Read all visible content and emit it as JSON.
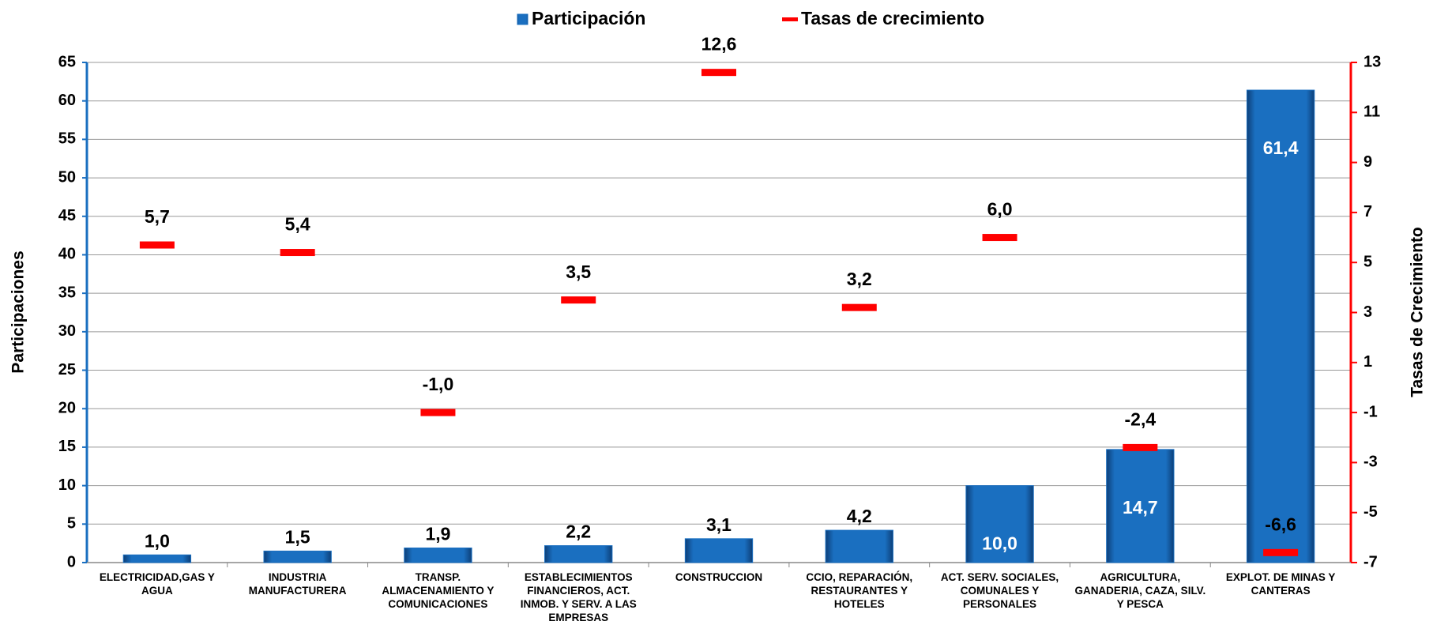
{
  "chart_data": {
    "type": "bar",
    "ylabel": "Participaciones",
    "y2label": "Tasas de Crecimiento",
    "categories": [
      "ELECTRICIDAD,GAS Y AGUA",
      "INDUSTRIA MANUFACTURERA",
      "TRANSP. ALMACENAMIENTO Y COMUNICACIONES",
      "ESTABLECIMIENTOS FINANCIEROS, ACT. INMOB. Y SERV. A LAS EMPRESAS",
      "CONSTRUCCION",
      "CCIO, REPARACIÓN, RESTAURANTES Y HOTELES",
      "ACT. SERV. SOCIALES, COMUNALES Y PERSONALES",
      "AGRICULTURA, GANADERIA, CAZA, SILV. Y PESCA",
      "EXPLOT. DE MINAS Y CANTERAS"
    ],
    "series": [
      {
        "name": "Participación",
        "type": "bar",
        "color": "#1a6fc0",
        "values": [
          1.0,
          1.5,
          1.9,
          2.2,
          3.1,
          4.2,
          10.0,
          14.7,
          61.4
        ],
        "value_labels": [
          "1,0",
          "1,5",
          "1,9",
          "2,2",
          "3,1",
          "4,2",
          "10,0",
          "14,7",
          "61,4"
        ]
      },
      {
        "name": "Tasas de crecimiento",
        "type": "marker",
        "axis": "y2",
        "color": "#ff0000",
        "values": [
          5.7,
          5.4,
          -1.0,
          3.5,
          12.6,
          3.2,
          6.0,
          -2.4,
          -6.6
        ],
        "value_labels": [
          "5,7",
          "5,4",
          "-1,0",
          "3,5",
          "12,6",
          "3,2",
          "6,0",
          "-2,4",
          "-6,6"
        ]
      }
    ],
    "ylim": [
      0,
      65
    ],
    "yticks": [
      0,
      5,
      10,
      15,
      20,
      25,
      30,
      35,
      40,
      45,
      50,
      55,
      60,
      65
    ],
    "y2lim": [
      -7,
      13
    ],
    "y2ticks": [
      -7,
      -5,
      -3,
      -1,
      1,
      3,
      5,
      7,
      9,
      11,
      13
    ],
    "grid": true,
    "legend": "top"
  }
}
